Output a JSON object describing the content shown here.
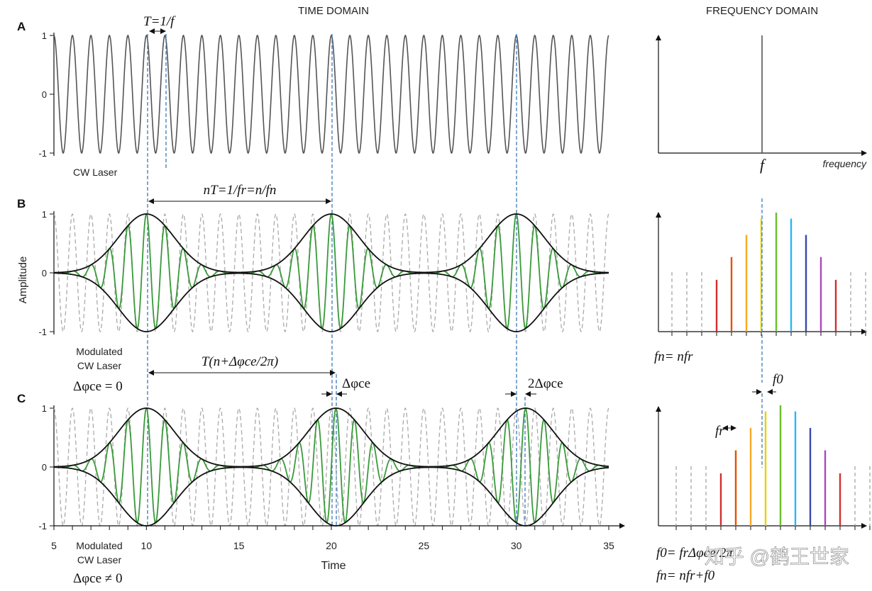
{
  "headers": {
    "time_domain": "TIME DOMAIN",
    "frequency_domain": "FREQUENCY DOMAIN"
  },
  "panels": {
    "a": {
      "letter": "A",
      "caption": "CW Laser",
      "period_label": "T=1/f",
      "y_ticks": [
        "1",
        "0",
        "-1"
      ],
      "freq_label": "f",
      "freq_axis_label": "frequency"
    },
    "b": {
      "letter": "B",
      "caption_line1": "Modulated",
      "caption_line2": "CW Laser",
      "phase_label": "Δφce = 0",
      "spacing_label": "nT=1/fr=n/fn",
      "y_ticks": [
        "1",
        "0",
        "-1"
      ],
      "comb_label": "fn= nfr"
    },
    "c": {
      "letter": "C",
      "caption_line1": "Modulated",
      "caption_line2": "CW Laser",
      "phase_label": "Δφce ≠ 0",
      "spacing_label": "T(n+Δφce/2π)",
      "shift1_label": "Δφce",
      "shift2_label": "2Δφce",
      "y_ticks": [
        "1",
        "0",
        "-1"
      ],
      "fr_label": "fr",
      "f0_label": "f0",
      "offset_label": "f0= frΔφce/2π",
      "comb_label": "fn= nfr+f0"
    }
  },
  "axes": {
    "y_label": "Amplitude",
    "x_label": "Time",
    "x_ticks": [
      "5",
      "10",
      "15",
      "20",
      "25",
      "30",
      "35"
    ]
  },
  "watermark": "知乎 @鹤王世家",
  "colors": {
    "carrier": "#555555",
    "dashed_carrier": "#aaaaaa",
    "pulse": "#3a9a3a",
    "envelope": "#111111",
    "guide": "#3a78b8",
    "comb_lines": [
      "#d32f2f",
      "#e65100",
      "#f9a825",
      "#e6d200",
      "#6abf2a",
      "#29b6f6",
      "#3949ab",
      "#ab47bc",
      "#d32f2f"
    ]
  }
}
